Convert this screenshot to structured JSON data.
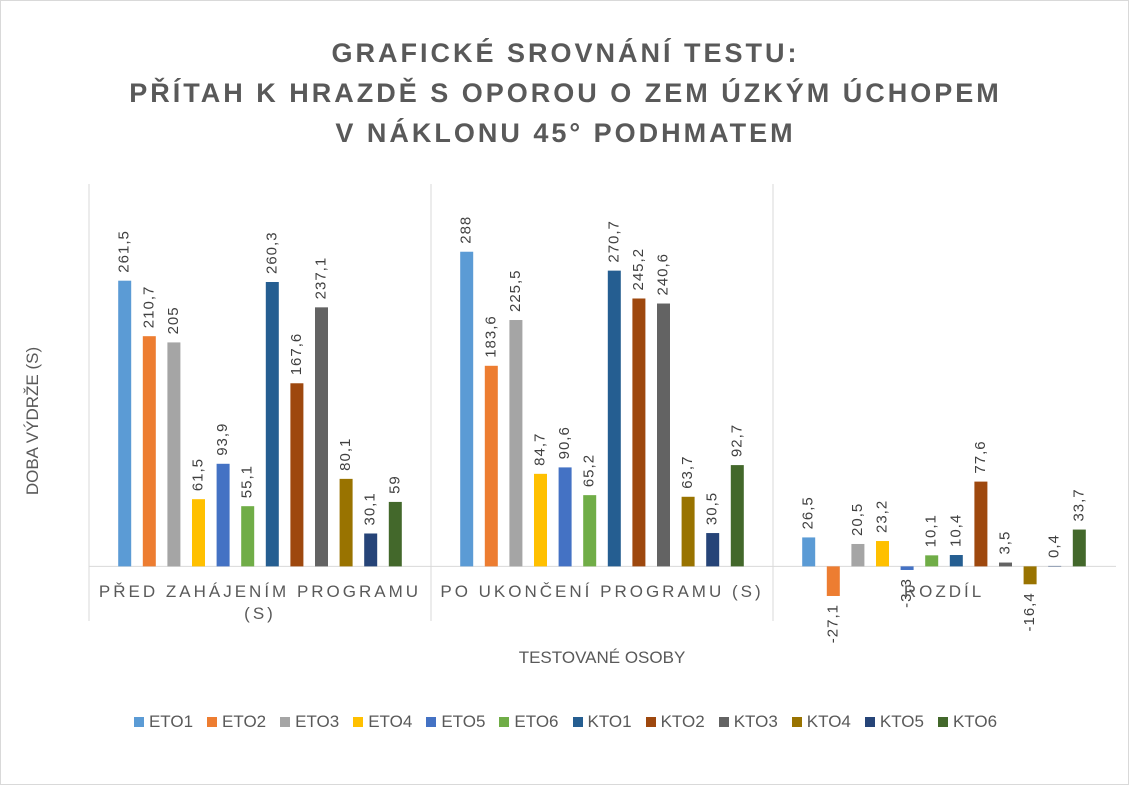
{
  "chart_data": {
    "type": "bar",
    "title": "GRAFICKÉ SROVNÁNÍ TESTU:\nPŘÍTAH K HRAZDĚ S OPOROU O ZEM ÚZKÝM ÚCHOPEM\nV NÁKLONU 45° PODHMATEM",
    "y_label": "DOBA VÝDRŽE (S)",
    "x_label": "TESTOVANÉ OSOBY",
    "categories": [
      "PŘED ZAHÁJENÍM PROGRAMU (S)",
      "PO UKONČENÍ PROGRAMU (S)",
      "ROZDÍL"
    ],
    "ylim": [
      -50,
      350
    ],
    "grid": false,
    "legend": "bottom",
    "series": [
      {
        "name": "ETO1",
        "color": "#5b9bd5",
        "values": [
          261.5,
          288,
          26.5
        ],
        "value_labels": [
          "261,5",
          "288",
          "26,5"
        ]
      },
      {
        "name": "ETO2",
        "color": "#ed7d31",
        "values": [
          210.7,
          183.6,
          -27.1
        ],
        "value_labels": [
          "210,7",
          "183,6",
          "-27,1"
        ]
      },
      {
        "name": "ETO3",
        "color": "#a5a5a5",
        "values": [
          205,
          225.5,
          20.5
        ],
        "value_labels": [
          "205",
          "225,5",
          "20,5"
        ]
      },
      {
        "name": "ETO4",
        "color": "#ffc000",
        "values": [
          61.5,
          84.7,
          23.2
        ],
        "value_labels": [
          "61,5",
          "84,7",
          "23,2"
        ]
      },
      {
        "name": "ETO5",
        "color": "#4472c4",
        "values": [
          93.9,
          90.6,
          -3.3
        ],
        "value_labels": [
          "93,9",
          "90,6",
          "-3,3"
        ]
      },
      {
        "name": "ETO6",
        "color": "#70ad47",
        "values": [
          55.1,
          65.2,
          10.1
        ],
        "value_labels": [
          "55,1",
          "65,2",
          "10,1"
        ]
      },
      {
        "name": "KTO1",
        "color": "#255e91",
        "values": [
          260.3,
          270.7,
          10.4
        ],
        "value_labels": [
          "260,3",
          "270,7",
          "10,4"
        ]
      },
      {
        "name": "KTO2",
        "color": "#9e480e",
        "values": [
          167.6,
          245.2,
          77.6
        ],
        "value_labels": [
          "167,6",
          "245,2",
          "77,6"
        ]
      },
      {
        "name": "KTO3",
        "color": "#636363",
        "values": [
          237.1,
          240.6,
          3.5
        ],
        "value_labels": [
          "237,1",
          "240,6",
          "3,5"
        ]
      },
      {
        "name": "KTO4",
        "color": "#997300",
        "values": [
          80.1,
          63.7,
          -16.4
        ],
        "value_labels": [
          "80,1",
          "63,7",
          "-16,4"
        ]
      },
      {
        "name": "KTO5",
        "color": "#264478",
        "values": [
          30.1,
          30.5,
          0.4
        ],
        "value_labels": [
          "30,1",
          "30,5",
          "0,4"
        ]
      },
      {
        "name": "KTO6",
        "color": "#43682b",
        "values": [
          59,
          92.7,
          33.7
        ],
        "value_labels": [
          "59",
          "92,7",
          "33,7"
        ]
      }
    ]
  }
}
